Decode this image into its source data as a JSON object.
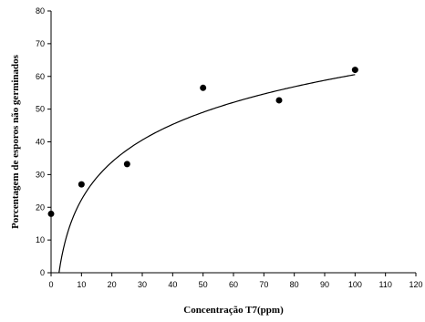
{
  "chart_data": {
    "type": "scatter",
    "title": "",
    "xlabel": "Concentração T7(ppm)",
    "ylabel": "Porcentagem de esporos não germinados",
    "xlim": [
      0,
      120
    ],
    "ylim": [
      0,
      80
    ],
    "x_ticks": [
      0,
      10,
      20,
      30,
      40,
      50,
      60,
      70,
      80,
      90,
      100,
      110,
      120
    ],
    "y_ticks": [
      0,
      10,
      20,
      30,
      40,
      50,
      60,
      70,
      80
    ],
    "grid": false,
    "legend": "none",
    "series": [
      {
        "points": [
          {
            "x": 0,
            "y": 18
          },
          {
            "x": 10,
            "y": 27
          },
          {
            "x": 25,
            "y": 33.2
          },
          {
            "x": 50,
            "y": 56.5
          },
          {
            "x": 75,
            "y": 52.7
          },
          {
            "x": 100,
            "y": 62
          }
        ]
      }
    ],
    "trendline": {
      "type": "logarithmic",
      "a": 16.6,
      "b": -15.9,
      "x_range": [
        2.6,
        100
      ]
    },
    "colors": {
      "marker": "#000000",
      "line": "#000000",
      "axis": "#000000"
    }
  }
}
